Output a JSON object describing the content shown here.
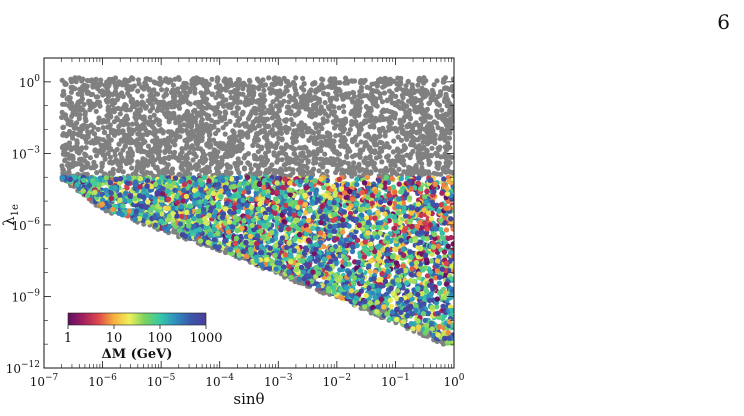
{
  "page": {
    "number": "6"
  },
  "chart_data": {
    "type": "scatter",
    "title": "",
    "xlabel": "sinθ",
    "ylabel": "λ",
    "ylabel_subscript": "1e",
    "xscale": "log",
    "yscale": "log",
    "xlim": [
      1e-07,
      1
    ],
    "ylim": [
      1e-12,
      10
    ],
    "x_ticks": [
      {
        "value": 1e-07,
        "base": "10",
        "exp": "−7"
      },
      {
        "value": 1e-06,
        "base": "10",
        "exp": "−6"
      },
      {
        "value": 1e-05,
        "base": "10",
        "exp": "−5"
      },
      {
        "value": 0.0001,
        "base": "10",
        "exp": "−4"
      },
      {
        "value": 0.001,
        "base": "10",
        "exp": "−3"
      },
      {
        "value": 0.01,
        "base": "10",
        "exp": "−2"
      },
      {
        "value": 0.1,
        "base": "10",
        "exp": "−1"
      },
      {
        "value": 1,
        "base": "10",
        "exp": "0"
      }
    ],
    "y_ticks": [
      {
        "value": 1,
        "base": "10",
        "exp": "0"
      },
      {
        "value": 0.001,
        "base": "10",
        "exp": "−3"
      },
      {
        "value": 1e-06,
        "base": "10",
        "exp": "−6"
      },
      {
        "value": 1e-09,
        "base": "10",
        "exp": "−9"
      },
      {
        "value": 1e-12,
        "base": "10",
        "exp": "−12"
      }
    ],
    "excluded_color": "#808080",
    "grid": false,
    "legend": "none",
    "colorbar": {
      "title": "ΔM (GeV)",
      "scale": "log",
      "range": [
        1,
        1000
      ],
      "tick_labels": [
        "1",
        "10",
        "100",
        "1000"
      ],
      "tick_values": [
        1,
        10,
        100,
        1000
      ],
      "colormap": [
        "#5e0f63",
        "#a3205e",
        "#e0484a",
        "#f6b13d",
        "#eef05a",
        "#7bd35f",
        "#37c8a7",
        "#2f8fbf",
        "#3b57aa",
        "#4a3f9a"
      ],
      "placement": "lower-left"
    },
    "regions": [
      {
        "name": "excluded",
        "color": "#808080",
        "x_range": [
          2e-07,
          1
        ],
        "y_range_top": 1.5,
        "y_range_bottom_at_left": 0.0001,
        "note": "gray band above about 1e-4"
      },
      {
        "name": "allowed",
        "lower_edge": [
          [
            2e-07,
            0.0001
          ],
          [
            1e-06,
            5e-06
          ],
          [
            0.0001,
            1e-07
          ],
          [
            0.01,
            1e-09
          ],
          [
            0.8,
            1e-11
          ]
        ],
        "upper_edge_y": 0.0001
      }
    ]
  }
}
